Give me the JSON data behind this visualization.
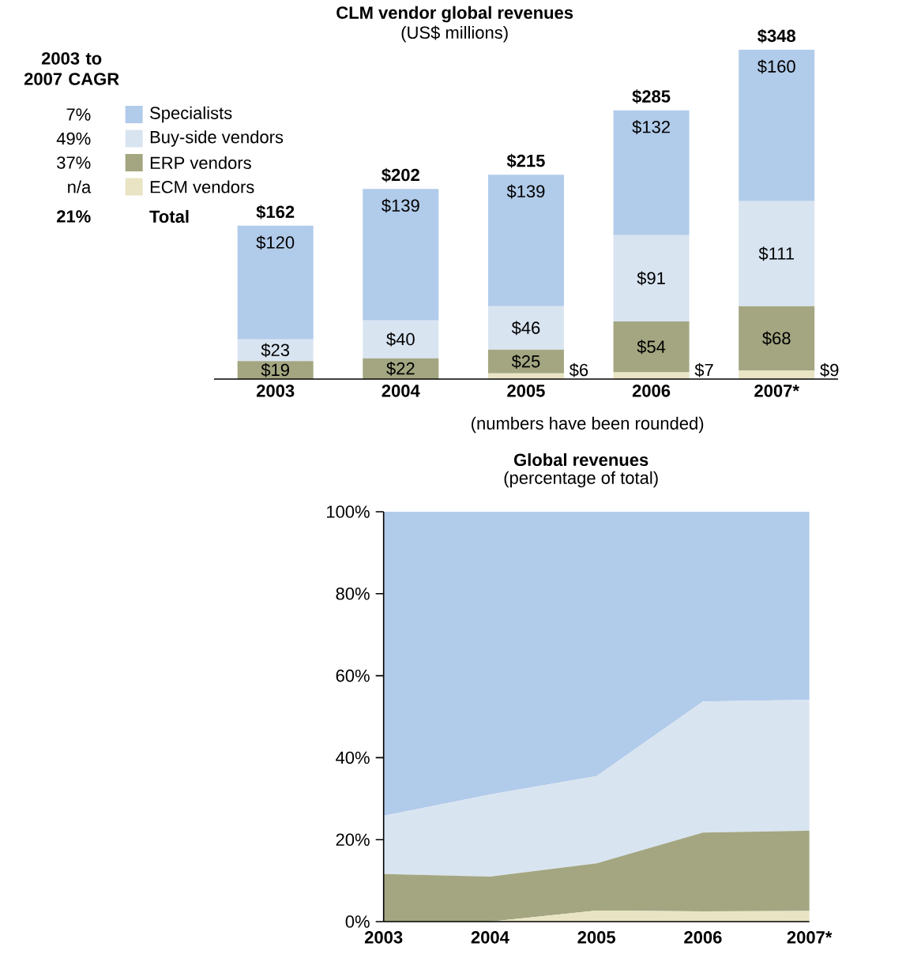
{
  "chart_data": [
    {
      "type": "bar",
      "stacked": true,
      "title": "CLM vendor global revenues",
      "subtitle": "(US$ millions)",
      "legend": "left",
      "legend_title": "2003 to 2007 CAGR",
      "categories": [
        "2003",
        "2004",
        "2005",
        "2006",
        "2007*"
      ],
      "series": [
        {
          "name": "ECM vendors",
          "color": "#e8e4c4",
          "values": [
            0,
            0,
            6,
            7,
            9
          ],
          "value_labels": [
            null,
            null,
            "$6",
            "$7",
            "$9"
          ]
        },
        {
          "name": "ERP vendors",
          "color": "#a3a680",
          "values": [
            19,
            22,
            25,
            54,
            68
          ],
          "value_labels": [
            "$19",
            "$22",
            "$25",
            "$54",
            "$68"
          ]
        },
        {
          "name": "Buy-side vendors",
          "color": "#d9e4f1",
          "values": [
            23,
            40,
            46,
            91,
            111
          ],
          "value_labels": [
            "$23",
            "$40",
            "$46",
            "$91",
            "$111"
          ]
        },
        {
          "name": "Specialists",
          "color": "#b1cbea",
          "values": [
            120,
            139,
            139,
            132,
            160
          ],
          "value_labels": [
            "$120",
            "$139",
            "$139",
            "$132",
            "$160"
          ]
        }
      ],
      "totals": [
        "$162",
        "$202",
        "$215",
        "$285",
        "$348"
      ],
      "annotations": [
        "7%",
        "49%",
        "37%",
        "n/a",
        "21%",
        "Total",
        "(numbers have been rounded)"
      ]
    },
    {
      "type": "area",
      "stacked": true,
      "title": "Global revenues",
      "subtitle": "(percentage of total)",
      "categories": [
        "2003",
        "2004",
        "2005",
        "2006",
        "2007*"
      ],
      "ylim": [
        0,
        100
      ],
      "yticks": [
        {
          "value": 0,
          "label": "0%"
        },
        {
          "value": 20,
          "label": "20%"
        },
        {
          "value": 40,
          "label": "40%"
        },
        {
          "value": 60,
          "label": "60%"
        },
        {
          "value": 80,
          "label": "80%"
        },
        {
          "value": 100,
          "label": "100%"
        }
      ],
      "series": [
        {
          "color": "#e8e4c4",
          "values": [
            0,
            0,
            2.7,
            2.5,
            2.6
          ]
        },
        {
          "color": "#a3a680",
          "values": [
            11.6,
            11.0,
            11.5,
            19.2,
            19.6
          ]
        },
        {
          "color": "#d9e4f1",
          "values": [
            14.2,
            20.0,
            21.3,
            32.0,
            31.9
          ]
        },
        {
          "color": "#b1cbea",
          "values": [
            74.2,
            69.0,
            64.5,
            46.3,
            45.9
          ]
        }
      ]
    }
  ]
}
